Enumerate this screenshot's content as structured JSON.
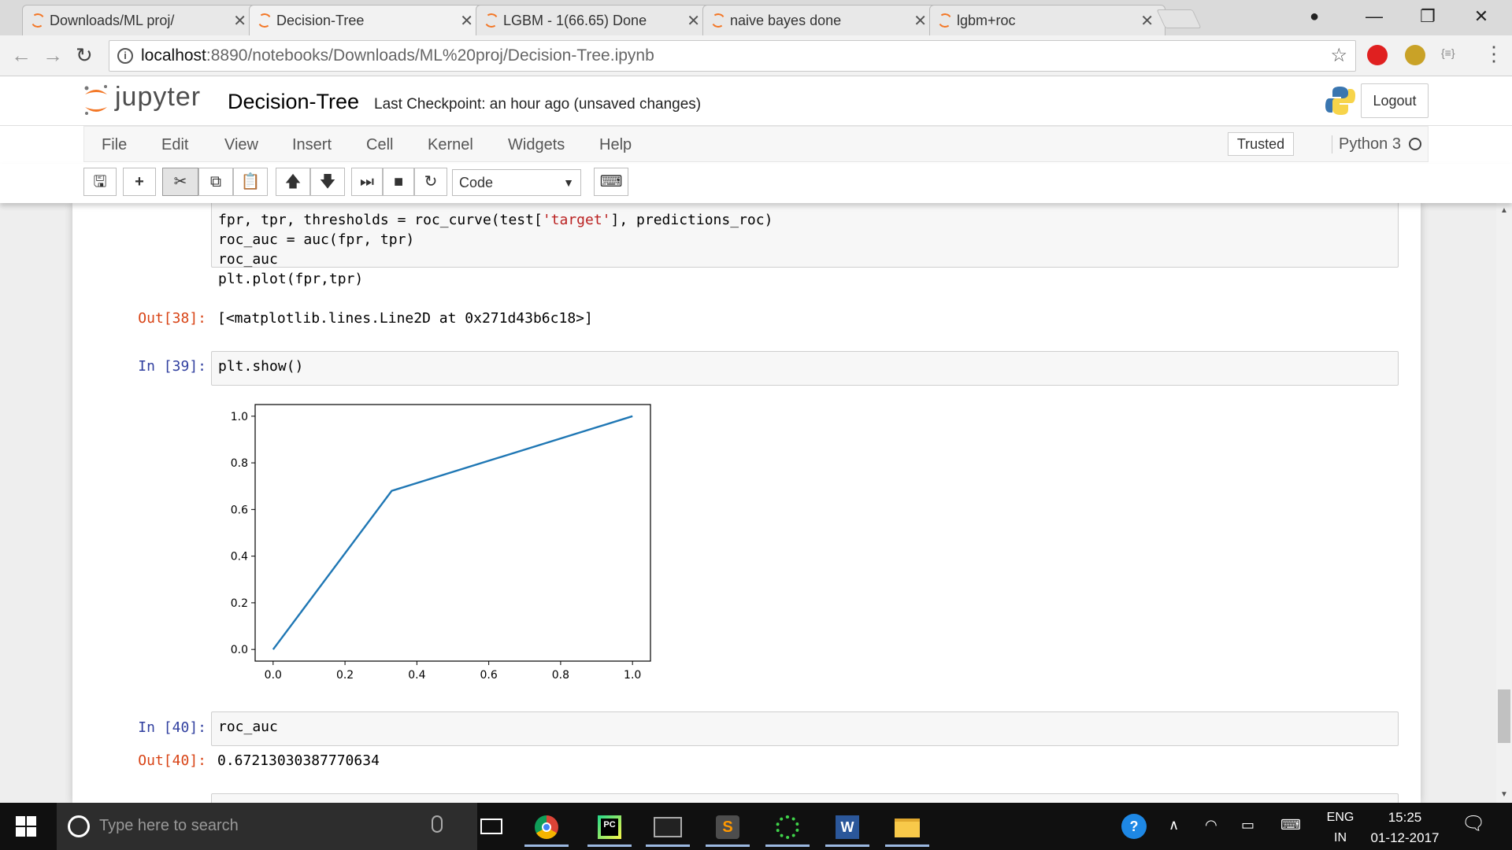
{
  "browser": {
    "tabs": [
      {
        "title": "Downloads/ML proj/"
      },
      {
        "title": "Decision-Tree"
      },
      {
        "title": "LGBM - 1(66.65) Done"
      },
      {
        "title": "naive bayes done"
      },
      {
        "title": "lgbm+roc"
      }
    ],
    "active_tab": 1,
    "url_host": "localhost",
    "url_path": ":8890/notebooks/Downloads/ML%20proj/Decision-Tree.ipynb",
    "extension_badge": "{≡}"
  },
  "jupyter": {
    "logo_text": "jupyter",
    "notebook_name": "Decision-Tree",
    "checkpoint": "Last Checkpoint: an hour ago (unsaved changes)",
    "logout_label": "Logout",
    "menu": [
      "File",
      "Edit",
      "View",
      "Insert",
      "Cell",
      "Kernel",
      "Widgets",
      "Help"
    ],
    "trusted_label": "Trusted",
    "kernel_name": "Python 3",
    "cell_type": "Code"
  },
  "cells": {
    "c38": {
      "code_lines": [
        {
          "pre": "fpr, tpr, thresholds = roc_curve(test[",
          "str": "'target'",
          "post": "], predictions_roc)"
        },
        {
          "pre": "roc_auc = auc(fpr, tpr)",
          "str": "",
          "post": ""
        },
        {
          "pre": "roc_auc",
          "str": "",
          "post": ""
        },
        {
          "pre": "plt.plot(fpr,tpr)",
          "str": "",
          "post": ""
        }
      ],
      "out_prompt": "Out[38]:",
      "output": "[<matplotlib.lines.Line2D at 0x271d43b6c18>]"
    },
    "c39": {
      "in_prompt": "In [39]:",
      "code": "plt.show()"
    },
    "c40": {
      "in_prompt": "In [40]:",
      "code": "roc_auc",
      "out_prompt": "Out[40]:",
      "output": "0.67213030387770634"
    }
  },
  "chart_data": {
    "type": "line",
    "series": [
      {
        "x": [
          0.0,
          0.33,
          1.0
        ],
        "y": [
          0.0,
          0.68,
          1.0
        ],
        "color": "#1f77b4"
      }
    ],
    "xlim": [
      -0.05,
      1.05
    ],
    "ylim": [
      -0.05,
      1.05
    ],
    "xticks": [
      "0.0",
      "0.2",
      "0.4",
      "0.6",
      "0.8",
      "1.0"
    ],
    "yticks": [
      "0.0",
      "0.2",
      "0.4",
      "0.6",
      "0.8",
      "1.0"
    ],
    "xtick_values": [
      0,
      0.2,
      0.4,
      0.6,
      0.8,
      1.0
    ],
    "ytick_values": [
      0,
      0.2,
      0.4,
      0.6,
      0.8,
      1.0
    ],
    "grid": false
  },
  "taskbar": {
    "search_placeholder": "Type here to search",
    "lang_top": "ENG",
    "lang_bottom": "IN",
    "time": "15:25",
    "date": "01-12-2017"
  }
}
